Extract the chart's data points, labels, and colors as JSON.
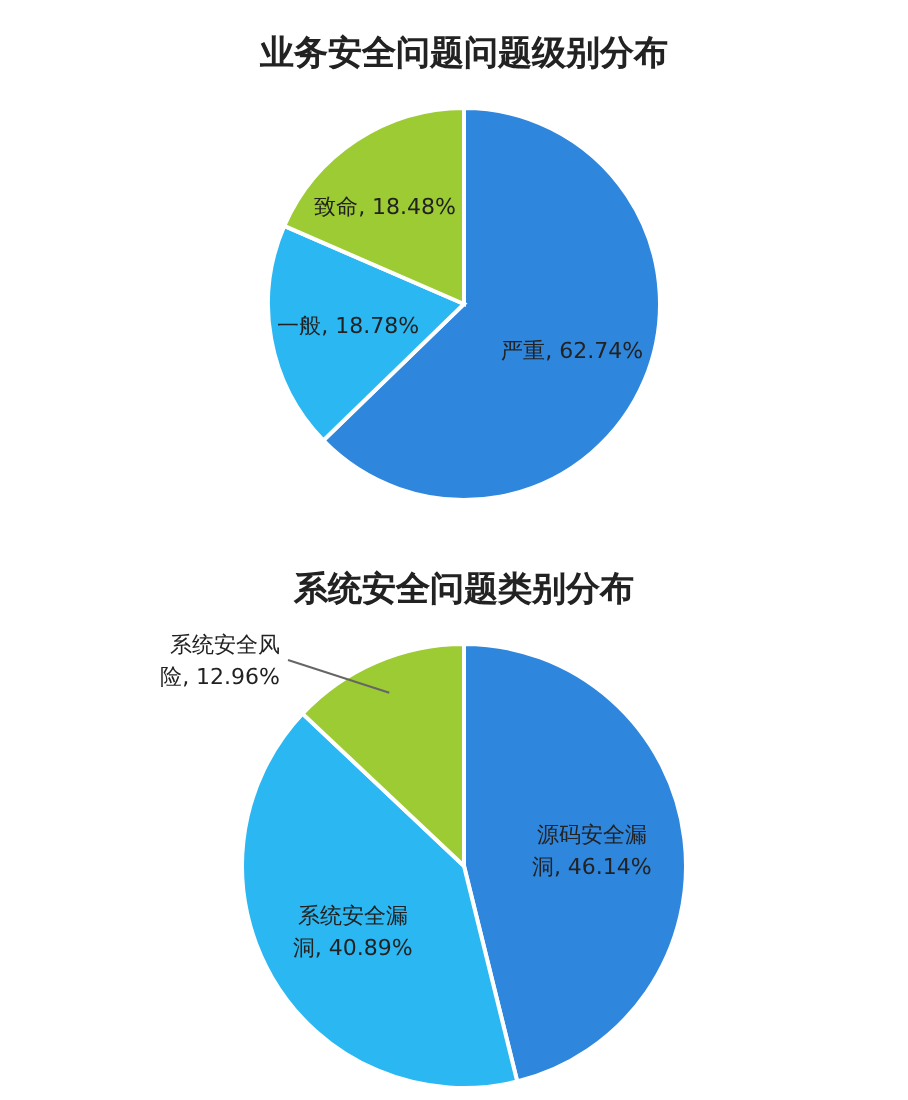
{
  "chart_data": [
    {
      "type": "pie",
      "title": "业务安全问题问题级别分布",
      "categories": [
        "严重",
        "一般",
        "致命"
      ],
      "values": [
        62.74,
        18.78,
        18.48
      ],
      "value_labels": [
        "62.74%",
        "18.78%",
        "18.48%"
      ],
      "colors": [
        "#2f86dd",
        "#2bb8f2",
        "#9ccb34"
      ],
      "legend": false
    },
    {
      "type": "pie",
      "title": "系统安全问题类别分布",
      "categories": [
        "源码安全漏洞",
        "系统安全漏洞",
        "系统安全风险"
      ],
      "values": [
        46.14,
        40.89,
        12.96
      ],
      "value_labels": [
        "46.14%",
        "40.89%",
        "12.96%"
      ],
      "colors": [
        "#2f86dd",
        "#2bb8f2",
        "#9ccb34"
      ],
      "legend": false
    }
  ]
}
